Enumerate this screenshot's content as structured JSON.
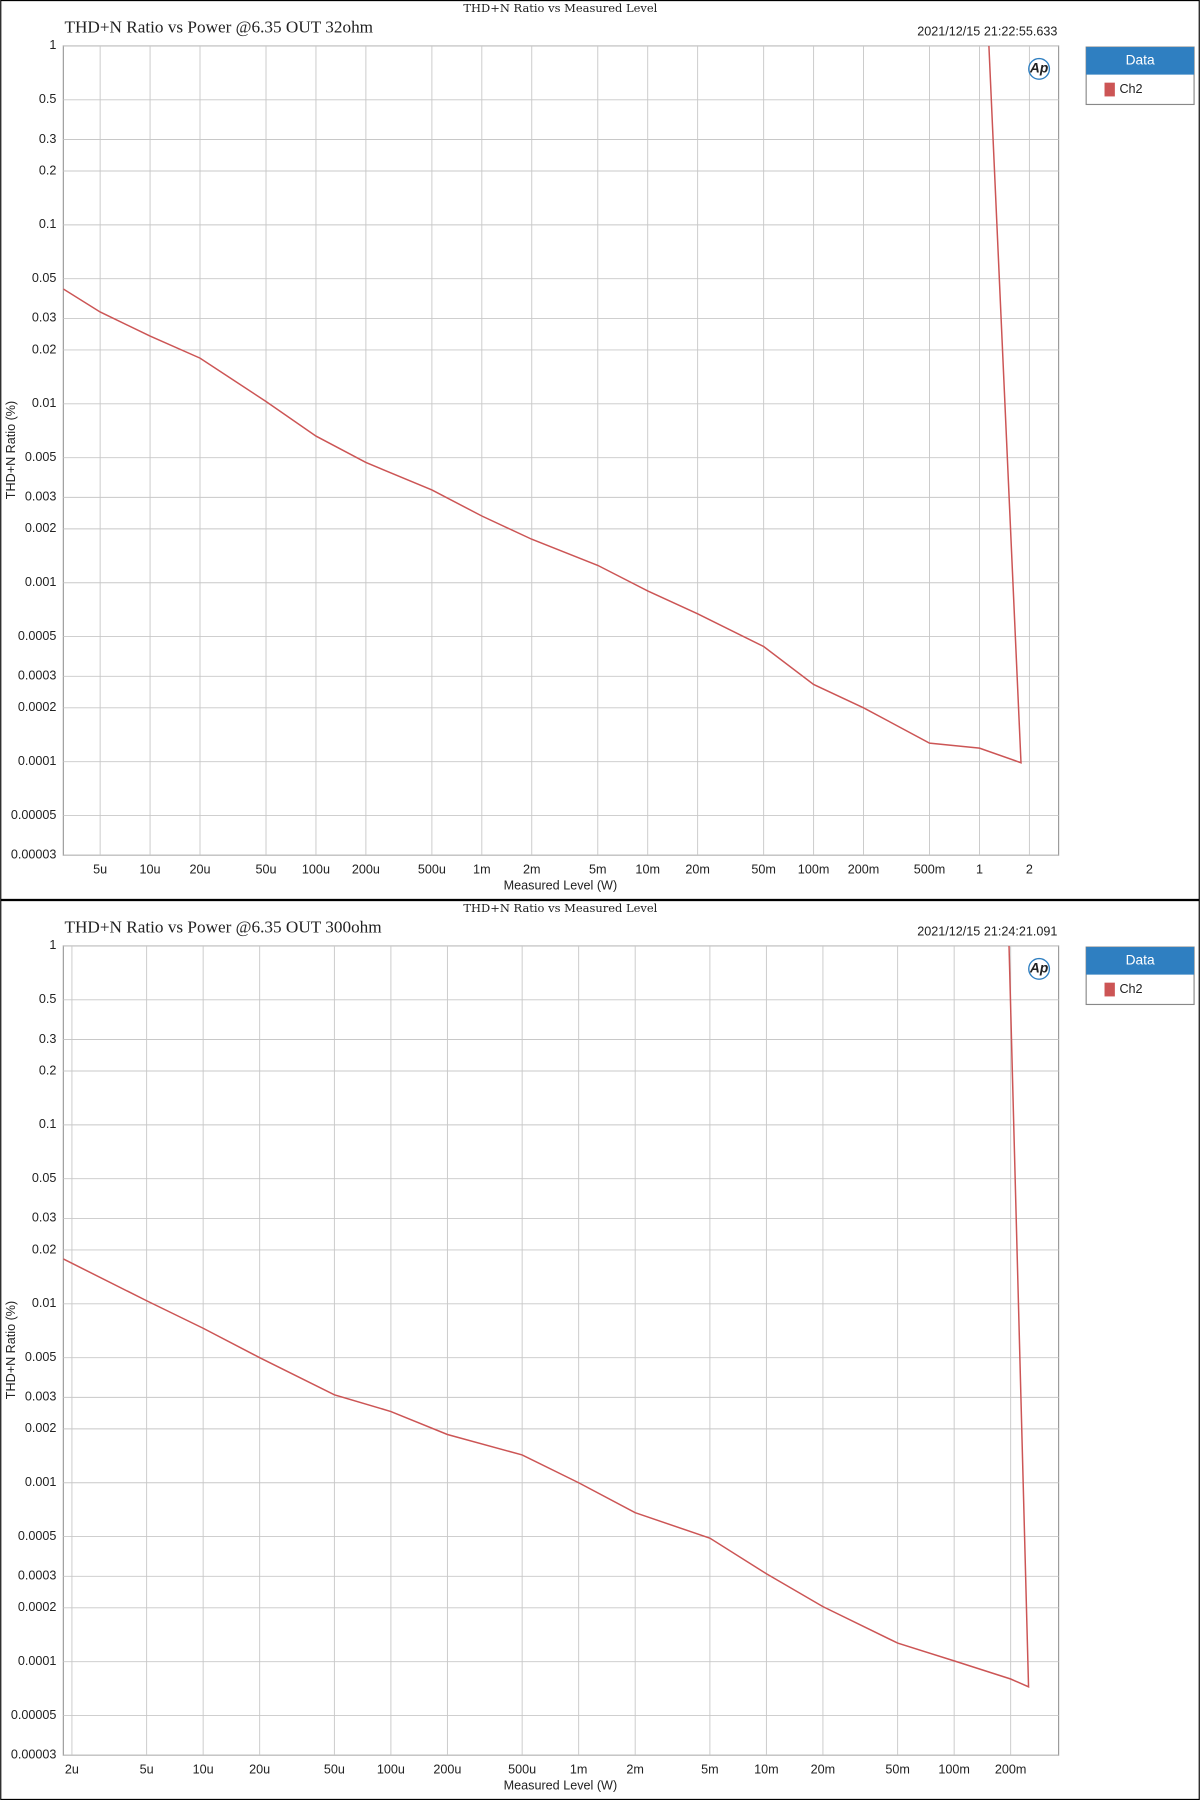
{
  "chart_data": [
    {
      "type": "line",
      "header": "THD+N Ratio vs Measured Level",
      "title": "THD+N Ratio vs Power @6.35 OUT 32ohm",
      "timestamp": "2021/12/15 21:22:55.633",
      "logo": "Ap",
      "legend_title": "Data",
      "xlabel": "Measured Level (W)",
      "ylabel": "THD+N Ratio (%)",
      "xscale": "log",
      "yscale": "log",
      "grid": true,
      "legend": "right",
      "xlim": [
        3e-06,
        3
      ],
      "ylim": [
        3e-05,
        1
      ],
      "xticks": [
        {
          "value": 5e-06,
          "label": "5u"
        },
        {
          "value": 1e-05,
          "label": "10u"
        },
        {
          "value": 2e-05,
          "label": "20u"
        },
        {
          "value": 5e-05,
          "label": "50u"
        },
        {
          "value": 0.0001,
          "label": "100u"
        },
        {
          "value": 0.0002,
          "label": "200u"
        },
        {
          "value": 0.0005,
          "label": "500u"
        },
        {
          "value": 0.001,
          "label": "1m"
        },
        {
          "value": 0.002,
          "label": "2m"
        },
        {
          "value": 0.005,
          "label": "5m"
        },
        {
          "value": 0.01,
          "label": "10m"
        },
        {
          "value": 0.02,
          "label": "20m"
        },
        {
          "value": 0.05,
          "label": "50m"
        },
        {
          "value": 0.1,
          "label": "100m"
        },
        {
          "value": 0.2,
          "label": "200m"
        },
        {
          "value": 0.5,
          "label": "500m"
        },
        1,
        2
      ],
      "yticks": [
        1,
        0.5,
        0.3,
        0.2,
        0.1,
        0.05,
        0.03,
        0.02,
        0.01,
        0.005,
        0.003,
        0.002,
        0.001,
        0.0005,
        0.0003,
        0.0002,
        0.0001,
        5e-05,
        3e-05
      ],
      "x": [
        3e-06,
        5e-06,
        1e-05,
        2e-05,
        5e-05,
        0.0001,
        0.0002,
        0.0005,
        0.001,
        0.002,
        0.005,
        0.01,
        0.02,
        0.05,
        0.1,
        0.2,
        0.5,
        1,
        1.78,
        1.14
      ],
      "series": [
        {
          "name": "Ch2",
          "color": "#cc5555",
          "values": [
            0.0438,
            0.0326,
            0.0239,
            0.018,
            0.0103,
            0.0066,
            0.0047,
            0.0033,
            0.00236,
            0.00175,
            0.00125,
            0.0009,
            0.00067,
            0.00044,
            0.00027,
            0.0002,
            0.000127,
            0.000119,
            9.86e-05,
            1
          ]
        }
      ]
    },
    {
      "type": "line",
      "header": "THD+N Ratio vs Measured Level",
      "title": "THD+N Ratio vs Power @6.35 OUT 300ohm",
      "timestamp": "2021/12/15 21:24:21.091",
      "logo": "Ap",
      "legend_title": "Data",
      "xlabel": "Measured Level (W)",
      "ylabel": "THD+N Ratio (%)",
      "xscale": "log",
      "yscale": "log",
      "grid": true,
      "legend": "right",
      "xlim": [
        1.8e-06,
        0.36
      ],
      "ylim": [
        3e-05,
        1
      ],
      "xticks": [
        {
          "value": 2e-06,
          "label": "2u"
        },
        {
          "value": 5e-06,
          "label": "5u"
        },
        {
          "value": 1e-05,
          "label": "10u"
        },
        {
          "value": 2e-05,
          "label": "20u"
        },
        {
          "value": 5e-05,
          "label": "50u"
        },
        {
          "value": 0.0001,
          "label": "100u"
        },
        {
          "value": 0.0002,
          "label": "200u"
        },
        {
          "value": 0.0005,
          "label": "500u"
        },
        {
          "value": 0.001,
          "label": "1m"
        },
        {
          "value": 0.002,
          "label": "2m"
        },
        {
          "value": 0.005,
          "label": "5m"
        },
        {
          "value": 0.01,
          "label": "10m"
        },
        {
          "value": 0.02,
          "label": "20m"
        },
        {
          "value": 0.05,
          "label": "50m"
        },
        {
          "value": 0.1,
          "label": "100m"
        },
        {
          "value": 0.2,
          "label": "200m"
        }
      ],
      "yticks": [
        1,
        0.5,
        0.3,
        0.2,
        0.1,
        0.05,
        0.03,
        0.02,
        0.01,
        0.005,
        0.003,
        0.002,
        0.001,
        0.0005,
        0.0003,
        0.0002,
        0.0001,
        5e-05,
        3e-05
      ],
      "x": [
        1.8e-06,
        5e-06,
        1e-05,
        2e-05,
        5e-05,
        0.0001,
        0.0002,
        0.0005,
        0.001,
        0.002,
        0.005,
        0.01,
        0.02,
        0.05,
        0.1,
        0.2,
        0.249,
        0.196
      ],
      "series": [
        {
          "name": "Ch2",
          "color": "#cc5555",
          "values": [
            0.0178,
            0.0104,
            0.0073,
            0.005,
            0.0031,
            0.0025,
            0.00186,
            0.00143,
            0.001,
            0.00068,
            0.00049,
            0.00031,
            0.000203,
            0.000127,
            0.000101,
            8e-05,
            7.23e-05,
            1
          ]
        }
      ]
    }
  ]
}
